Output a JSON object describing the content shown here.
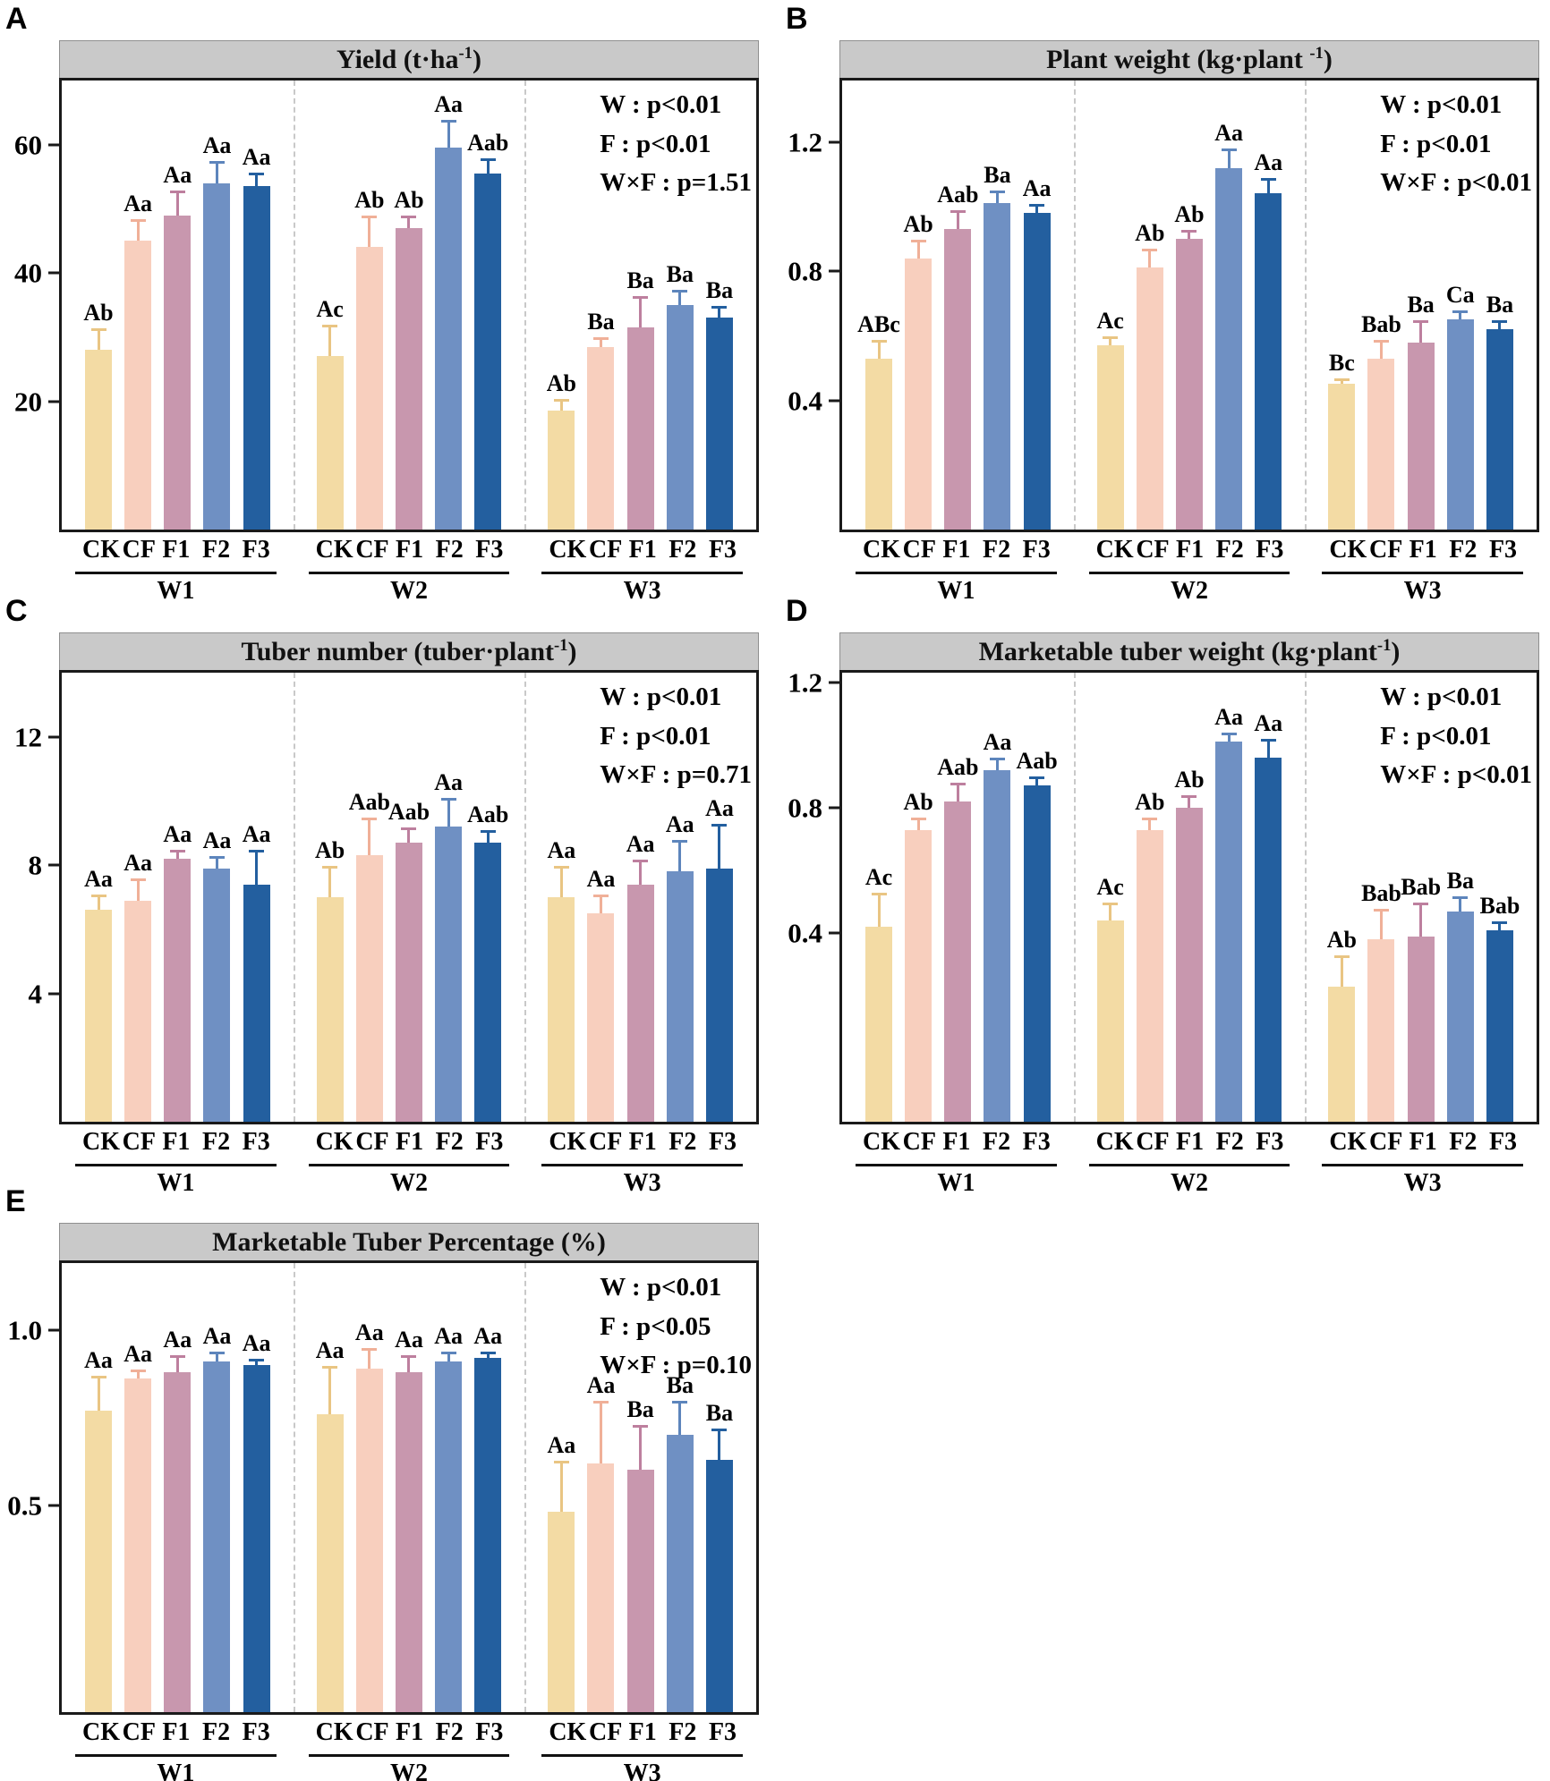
{
  "styles": {
    "bar_colors": [
      "#f3dba4",
      "#f8cfbe",
      "#c897ae",
      "#6f90c3",
      "#235f9f"
    ],
    "error_colors": [
      "#e9c583",
      "#f0b098",
      "#bd7f9e",
      "#5d85bc",
      "#235f9f"
    ],
    "title_bg": "#c9c9c9",
    "separator_color": "#c9c9c9"
  },
  "chart_data": [
    {
      "panel": "A",
      "type": "bar",
      "title": "Yield (t·ha^-1)",
      "stats": [
        "W : p<0.01",
        "F : p<0.01",
        "W×F : p=1.51"
      ],
      "categories": [
        "CK",
        "CF",
        "F1",
        "F2",
        "F3"
      ],
      "group_labels": [
        "W1",
        "W2",
        "W3"
      ],
      "y_tick_labels": [
        "20",
        "40",
        "60"
      ],
      "y_tick_values": [
        20,
        40,
        60
      ],
      "ylim": [
        0,
        70
      ],
      "series": [
        {
          "group": "W1",
          "values": [
            28,
            45,
            49,
            54,
            53.5
          ],
          "errors": [
            3,
            3,
            3.5,
            3,
            1.7
          ],
          "letters": [
            "Ab",
            "Aa",
            "Aa",
            "Aa",
            "Aa"
          ]
        },
        {
          "group": "W2",
          "values": [
            27,
            44,
            47,
            59.5,
            55.5
          ],
          "errors": [
            4.5,
            4.5,
            1.5,
            4,
            2
          ],
          "letters": [
            "Ac",
            "Ab",
            "Ab",
            "Aa",
            "Aab"
          ]
        },
        {
          "group": "W3",
          "values": [
            18.5,
            28.5,
            31.5,
            35,
            33
          ],
          "errors": [
            1.5,
            1,
            4.5,
            2,
            1.5
          ],
          "letters": [
            "Ab",
            "Ba",
            "Ba",
            "Ba",
            "Ba"
          ]
        }
      ]
    },
    {
      "panel": "B",
      "type": "bar",
      "title": "Plant weight (kg·plant ^-1)",
      "stats": [
        "W : p<0.01",
        "F : p<0.01",
        "W×F : p<0.01"
      ],
      "categories": [
        "CK",
        "CF",
        "F1",
        "F2",
        "F3"
      ],
      "group_labels": [
        "W1",
        "W2",
        "W3"
      ],
      "y_tick_labels": [
        "0.4",
        "0.8",
        "1.2"
      ],
      "y_tick_values": [
        0.4,
        0.8,
        1.2
      ],
      "ylim": [
        0,
        1.39
      ],
      "series": [
        {
          "group": "W1",
          "values": [
            0.53,
            0.84,
            0.93,
            1.01,
            0.98
          ],
          "errors": [
            0.05,
            0.05,
            0.05,
            0.03,
            0.02
          ],
          "letters": [
            "ABc",
            "Ab",
            "Aab",
            "Ba",
            "Aa"
          ]
        },
        {
          "group": "W2",
          "values": [
            0.57,
            0.81,
            0.9,
            1.12,
            1.04
          ],
          "errors": [
            0.02,
            0.05,
            0.02,
            0.05,
            0.04
          ],
          "letters": [
            "Ac",
            "Ab",
            "Ab",
            "Aa",
            "Aa"
          ]
        },
        {
          "group": "W3",
          "values": [
            0.45,
            0.53,
            0.58,
            0.65,
            0.62
          ],
          "errors": [
            0.01,
            0.05,
            0.06,
            0.02,
            0.02
          ],
          "letters": [
            "Bc",
            "Bab",
            "Ba",
            "Ca",
            "Ba"
          ]
        }
      ]
    },
    {
      "panel": "C",
      "type": "bar",
      "title": "Tuber number (tuber·plant^-1)",
      "stats": [
        "W : p<0.01",
        "F : p<0.01",
        "W×F : p=0.71"
      ],
      "categories": [
        "CK",
        "CF",
        "F1",
        "F2",
        "F3"
      ],
      "group_labels": [
        "W1",
        "W2",
        "W3"
      ],
      "y_tick_labels": [
        "4",
        "8",
        "12"
      ],
      "y_tick_values": [
        4,
        8,
        12
      ],
      "ylim": [
        0,
        14
      ],
      "series": [
        {
          "group": "W1",
          "values": [
            6.6,
            6.9,
            8.2,
            7.9,
            7.4
          ],
          "errors": [
            0.4,
            0.6,
            0.2,
            0.3,
            1.0
          ],
          "letters": [
            "Aa",
            "Aa",
            "Aa",
            "Aa",
            "Aa"
          ]
        },
        {
          "group": "W2",
          "values": [
            7.0,
            8.3,
            8.7,
            9.2,
            8.7
          ],
          "errors": [
            0.9,
            1.1,
            0.4,
            0.8,
            0.3
          ],
          "letters": [
            "Ab",
            "Aab",
            "Aab",
            "Aa",
            "Aab"
          ]
        },
        {
          "group": "W3",
          "values": [
            7.0,
            6.5,
            7.4,
            7.8,
            7.9
          ],
          "errors": [
            0.9,
            0.5,
            0.7,
            0.9,
            1.3
          ],
          "letters": [
            "Aa",
            "Aa",
            "Aa",
            "Aa",
            "Aa"
          ]
        }
      ]
    },
    {
      "panel": "D",
      "type": "bar",
      "title": "Marketable tuber weight (kg·plant^-1)",
      "stats": [
        "W : p<0.01",
        "F : p<0.01",
        "W×F : p<0.01"
      ],
      "categories": [
        "CK",
        "CF",
        "F1",
        "F2",
        "F3"
      ],
      "group_labels": [
        "W1",
        "W2",
        "W3"
      ],
      "y_tick_labels": [
        "0.4",
        "0.8",
        "1.2"
      ],
      "y_tick_values": [
        0.4,
        0.8,
        1.2
      ],
      "ylim": [
        -0.2,
        1.23
      ],
      "series": [
        {
          "group": "W1",
          "values": [
            0.42,
            0.73,
            0.82,
            0.92,
            0.87
          ],
          "errors": [
            0.1,
            0.03,
            0.05,
            0.03,
            0.02
          ],
          "letters": [
            "Ac",
            "Ab",
            "Aab",
            "Aa",
            "Aab"
          ]
        },
        {
          "group": "W2",
          "values": [
            0.44,
            0.73,
            0.8,
            1.01,
            0.96
          ],
          "errors": [
            0.05,
            0.03,
            0.03,
            0.02,
            0.05
          ],
          "letters": [
            "Ac",
            "Ab",
            "Ab",
            "Aa",
            "Aa"
          ]
        },
        {
          "group": "W3",
          "values": [
            0.23,
            0.38,
            0.39,
            0.47,
            0.41
          ],
          "errors": [
            0.09,
            0.09,
            0.1,
            0.04,
            0.02
          ],
          "letters": [
            "Ab",
            "Bab",
            "Bab",
            "Ba",
            "Bab"
          ]
        }
      ]
    },
    {
      "panel": "E",
      "type": "bar",
      "title": "Marketable Tuber Percentage (%)",
      "stats": [
        "W : p<0.01",
        "F : p<0.05",
        "W×F : p=0.10"
      ],
      "categories": [
        "CK",
        "CF",
        "F1",
        "F2",
        "F3"
      ],
      "group_labels": [
        "W1",
        "W2",
        "W3"
      ],
      "y_tick_labels": [
        "0.5",
        "1.0"
      ],
      "y_tick_values": [
        0.5,
        1.0
      ],
      "ylim": [
        -0.09,
        1.19
      ],
      "series": [
        {
          "group": "W1",
          "values": [
            0.77,
            0.86,
            0.88,
            0.91,
            0.9
          ],
          "errors": [
            0.09,
            0.02,
            0.04,
            0.02,
            0.01
          ],
          "letters": [
            "Aa",
            "Aa",
            "Aa",
            "Aa",
            "Aa"
          ]
        },
        {
          "group": "W2",
          "values": [
            0.76,
            0.89,
            0.88,
            0.91,
            0.92
          ],
          "errors": [
            0.13,
            0.05,
            0.04,
            0.02,
            0.01
          ],
          "letters": [
            "Aa",
            "Aa",
            "Aa",
            "Aa",
            "Aa"
          ]
        },
        {
          "group": "W3",
          "values": [
            0.48,
            0.62,
            0.6,
            0.7,
            0.63
          ],
          "errors": [
            0.14,
            0.17,
            0.12,
            0.09,
            0.08
          ],
          "letters": [
            "Aa",
            "Aa",
            "Ba",
            "Ba",
            "Ba"
          ]
        }
      ]
    }
  ]
}
